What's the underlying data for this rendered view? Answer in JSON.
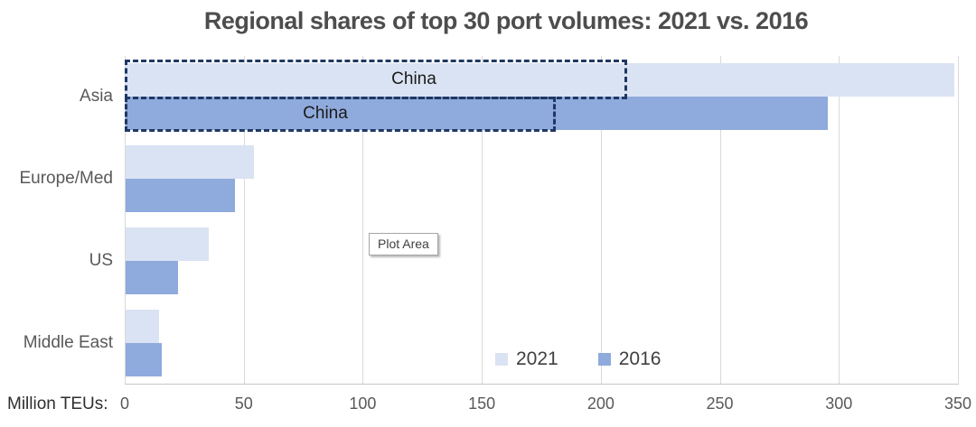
{
  "chart_data": {
    "type": "bar",
    "orientation": "horizontal",
    "title": "Regional shares of top 30 port volumes: 2021 vs. 2016",
    "categories": [
      "Asia",
      "Europe/Med",
      "US",
      "Middle East"
    ],
    "series": [
      {
        "name": "2021",
        "color": "#dae3f3",
        "values": [
          348,
          54,
          35,
          14
        ]
      },
      {
        "name": "2016",
        "color": "#8faadc",
        "values": [
          295,
          46,
          22,
          15
        ]
      }
    ],
    "annotations": [
      {
        "label": "China",
        "series": "2021",
        "category": "Asia",
        "value": 210
      },
      {
        "label": "China",
        "series": "2016",
        "category": "Asia",
        "value": 180
      }
    ],
    "xlabel": "Million TEUs:",
    "x_ticks": [
      0,
      50,
      100,
      150,
      200,
      250,
      300,
      350
    ],
    "xlim": [
      0,
      350
    ],
    "grid": "vertical",
    "legend_position": "inside-bottom-center",
    "annotation_border_color": "#1f3864",
    "gridline_color": "#d9d9d9"
  },
  "tooltip": {
    "label": "Plot Area"
  }
}
